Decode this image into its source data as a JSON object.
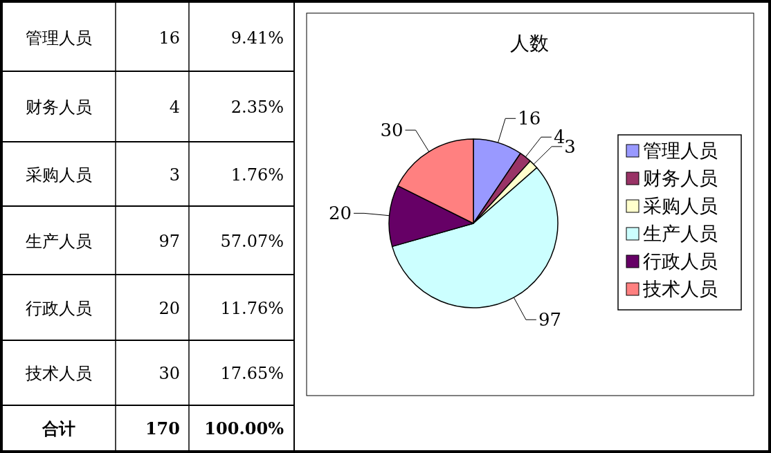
{
  "chart_data": [
    {
      "type": "other",
      "annotations": [
        "管理人员",
        "16",
        "9.41%",
        "财务人员",
        "4",
        "2.35%",
        "采购人员",
        "3",
        "1.76%",
        "生产人员",
        "97",
        "57.07%",
        "行政人员",
        "20",
        "11.76%",
        "技术人员",
        "30",
        "17.65%",
        "合计",
        "170",
        "100.00%"
      ]
    },
    {
      "type": "pie",
      "title": "人数",
      "categories": [
        "管理人员",
        "财务人员",
        "采购人员",
        "生产人员",
        "行政人员",
        "技术人员"
      ],
      "values": [
        16,
        4,
        3,
        97,
        20,
        30
      ],
      "colors": [
        "#9999ff",
        "#993366",
        "#ffffcc",
        "#ccffff",
        "#660066",
        "#ff8080"
      ],
      "data_labels": true,
      "legend": "right"
    }
  ]
}
